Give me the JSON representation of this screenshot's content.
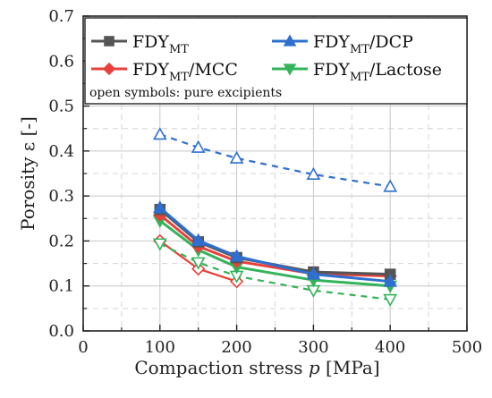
{
  "chart_data": {
    "type": "line",
    "xlabel": "Compaction stress",
    "xlabel_var": "p",
    "xlabel_unit": "[MPa]",
    "ylabel": "Porosity ε [-]",
    "xlim": [
      0,
      500
    ],
    "ylim": [
      0.0,
      0.7
    ],
    "x_ticks": [
      "0",
      "100",
      "200",
      "300",
      "400",
      "500"
    ],
    "y_ticks": [
      "0.0",
      "0.1",
      "0.2",
      "0.3",
      "0.4",
      "0.5",
      "0.6",
      "0.7"
    ],
    "grid": true,
    "legend_note": "open symbols: pure excipients",
    "series": [
      {
        "name": "FDY",
        "sub": "MT",
        "suffix": "",
        "color": "#555555",
        "marker": "square",
        "open": false,
        "dashed": false,
        "x": [
          100,
          150,
          200,
          300,
          400
        ],
        "y": [
          0.27,
          0.198,
          0.163,
          0.131,
          0.126
        ]
      },
      {
        "name": "FDY",
        "sub": "MT",
        "suffix": "/DCP",
        "color": "#2e6fd0",
        "marker": "triangle-up",
        "open": false,
        "dashed": false,
        "x": [
          100,
          150,
          200,
          300,
          400
        ],
        "y": [
          0.274,
          0.201,
          0.166,
          0.126,
          0.11
        ]
      },
      {
        "name": "FDY",
        "sub": "MT",
        "suffix": "/MCC",
        "color": "#e8413c",
        "marker": "diamond",
        "open": false,
        "dashed": false,
        "x": [
          100,
          150,
          200,
          300,
          400
        ],
        "y": [
          0.258,
          0.188,
          0.155,
          0.127,
          0.122
        ]
      },
      {
        "name": "FDY",
        "sub": "MT",
        "suffix": "/Lactose",
        "color": "#33b35a",
        "marker": "triangle-down",
        "open": false,
        "dashed": false,
        "x": [
          100,
          150,
          200,
          300,
          400
        ],
        "y": [
          0.245,
          0.18,
          0.142,
          0.113,
          0.1
        ]
      },
      {
        "name": "",
        "sub": "",
        "suffix": "",
        "color": "#2e6fd0",
        "marker": "triangle-up",
        "open": true,
        "dashed": true,
        "x": [
          100,
          150,
          200,
          300,
          400
        ],
        "y": [
          0.437,
          0.408,
          0.384,
          0.348,
          0.321
        ]
      },
      {
        "name": "",
        "sub": "",
        "suffix": "",
        "color": "#e8413c",
        "marker": "diamond",
        "open": true,
        "dashed": false,
        "x": [
          100,
          150,
          200
        ],
        "y": [
          0.2,
          0.138,
          0.11
        ]
      },
      {
        "name": "",
        "sub": "",
        "suffix": "",
        "color": "#33b35a",
        "marker": "triangle-down",
        "open": true,
        "dashed": true,
        "x": [
          100,
          150,
          200,
          300,
          400
        ],
        "y": [
          0.194,
          0.152,
          0.122,
          0.09,
          0.07
        ]
      }
    ]
  }
}
